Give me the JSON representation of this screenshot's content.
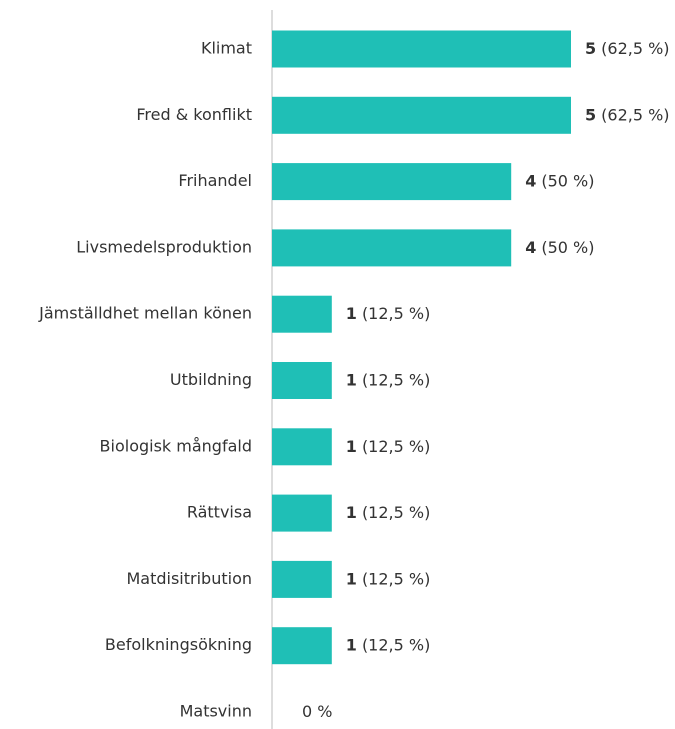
{
  "chart_data": {
    "type": "barh",
    "categories": [
      "Klimat",
      "Fred & konflikt",
      "Frihandel",
      "Livsmedelsproduktion",
      "Jämställdhet mellan könen",
      "Utbildning",
      "Biologisk mångfald",
      "Rättvisa",
      "Matdisitribution",
      "Befolkningsökning",
      "Matsvinn"
    ],
    "values": [
      5,
      5,
      4,
      4,
      1,
      1,
      1,
      1,
      1,
      1,
      0
    ],
    "shares": [
      62.5,
      62.5,
      50,
      50,
      12.5,
      12.5,
      12.5,
      12.5,
      12.5,
      12.5,
      0
    ],
    "share_labels": [
      "(62,5 %)",
      "(62,5 %)",
      "(50 %)",
      "(50 %)",
      "(12,5 %)",
      "(12,5 %)",
      "(12,5 %)",
      "(12,5 %)",
      "(12,5 %)",
      "(12,5 %)",
      "0 %"
    ],
    "color": "#1fbfb6",
    "xlim": [
      0,
      5
    ]
  }
}
